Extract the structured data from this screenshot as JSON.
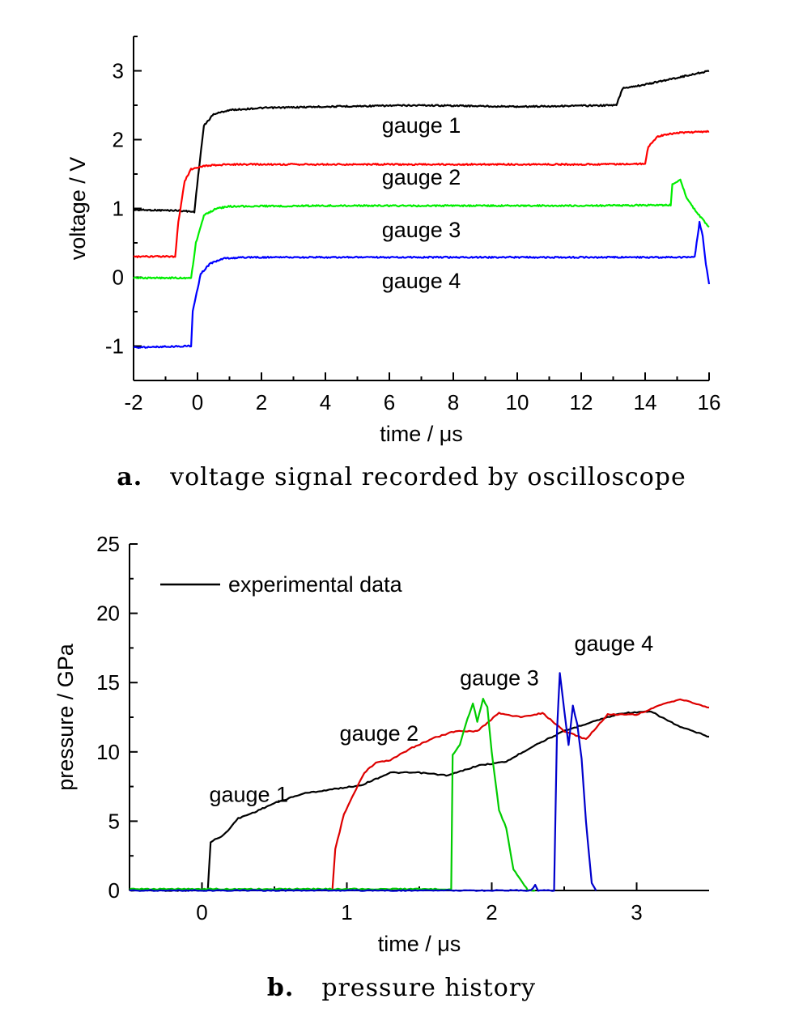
{
  "panel_a": {
    "caption_letter": "a.",
    "caption_text": "voltage signal recorded by oscilloscope"
  },
  "panel_b": {
    "caption_letter": "b.",
    "caption_text": "pressure history"
  },
  "chart_data": [
    {
      "type": "line",
      "title": "",
      "xlabel": "time / μs",
      "ylabel": "voltage / V",
      "xlim": [
        -2,
        16
      ],
      "ylim": [
        -1.5,
        3.5
      ],
      "xticks": [
        -2,
        0,
        2,
        4,
        6,
        8,
        10,
        12,
        14,
        16
      ],
      "xtick_labels": [
        "-2",
        "0",
        "2",
        "4",
        "6",
        "8",
        "10",
        "12",
        "14",
        "16"
      ],
      "yticks": [
        -1,
        0,
        1,
        2,
        3
      ],
      "ytick_labels": [
        "-1",
        "0",
        "1",
        "2",
        "3"
      ],
      "grid": false,
      "annotations": [
        {
          "text": "gauge 1",
          "x": 7.0,
          "y": 2.1
        },
        {
          "text": "gauge 2",
          "x": 7.0,
          "y": 1.35
        },
        {
          "text": "gauge 3",
          "x": 7.0,
          "y": 0.58
        },
        {
          "text": "gauge 4",
          "x": 7.0,
          "y": -0.16
        }
      ],
      "series": [
        {
          "color": "#000000",
          "x": [
            -2,
            -0.6,
            -0.1,
            0.05,
            0.2,
            0.5,
            1,
            2,
            4,
            7,
            10,
            13.1,
            13.3,
            14,
            15,
            16
          ],
          "y": [
            0.98,
            0.97,
            0.95,
            1.6,
            2.2,
            2.37,
            2.43,
            2.46,
            2.48,
            2.5,
            2.48,
            2.5,
            2.75,
            2.8,
            2.9,
            3.0
          ]
        },
        {
          "color": "#ff0000",
          "x": [
            -2,
            -0.7,
            -0.6,
            -0.4,
            -0.2,
            0.2,
            1,
            4,
            8,
            12,
            14.0,
            14.1,
            14.4,
            15,
            16
          ],
          "y": [
            0.3,
            0.3,
            0.8,
            1.4,
            1.57,
            1.62,
            1.64,
            1.64,
            1.64,
            1.64,
            1.65,
            1.9,
            2.05,
            2.1,
            2.12
          ]
        },
        {
          "color": "#00ee00",
          "x": [
            -2,
            -0.2,
            -0.05,
            0.2,
            0.6,
            1,
            4,
            8,
            12,
            14.8,
            14.85,
            15.1,
            15.3,
            15.6,
            16
          ],
          "y": [
            -0.01,
            -0.01,
            0.5,
            0.9,
            1.0,
            1.03,
            1.04,
            1.04,
            1.04,
            1.05,
            1.35,
            1.42,
            1.15,
            0.95,
            0.73
          ]
        },
        {
          "color": "#0000ff",
          "x": [
            -2,
            -0.2,
            -0.15,
            0.1,
            0.4,
            0.8,
            1.5,
            4,
            8,
            12,
            15.4,
            15.55,
            15.7,
            15.8,
            15.9,
            16
          ],
          "y": [
            -1.02,
            -1.0,
            -0.5,
            0.05,
            0.2,
            0.27,
            0.29,
            0.29,
            0.29,
            0.29,
            0.29,
            0.3,
            0.8,
            0.6,
            0.2,
            -0.1
          ]
        }
      ]
    },
    {
      "type": "line",
      "title": "",
      "xlabel": "time / μs",
      "ylabel": "pressure / GPa",
      "xlim": [
        -0.5,
        3.5
      ],
      "ylim": [
        0,
        25
      ],
      "xticks": [
        0,
        1,
        2,
        3
      ],
      "xtick_labels": [
        "0",
        "1",
        "2",
        "3"
      ],
      "yticks": [
        0,
        5,
        10,
        15,
        20,
        25
      ],
      "ytick_labels": [
        "0",
        "5",
        "10",
        "15",
        "20",
        "25"
      ],
      "grid": false,
      "legend": {
        "position": "top-left",
        "entries": [
          {
            "label": "experimental data",
            "color": "#000000"
          }
        ]
      },
      "annotations": [
        {
          "text": "gauge 1",
          "x": 0.05,
          "y": 6.4
        },
        {
          "text": "gauge 2",
          "x": 0.95,
          "y": 10.8
        },
        {
          "text": "gauge 3",
          "x": 1.78,
          "y": 14.8
        },
        {
          "text": "gauge 4",
          "x": 2.57,
          "y": 17.3
        }
      ],
      "series": [
        {
          "color": "#000000",
          "x": [
            -0.5,
            0.04,
            0.06,
            0.15,
            0.25,
            0.35,
            0.5,
            0.7,
            0.9,
            1.1,
            1.3,
            1.5,
            1.7,
            1.9,
            2.1,
            2.3,
            2.5,
            2.7,
            2.9,
            3.1,
            3.3,
            3.5
          ],
          "y": [
            0,
            0,
            3.5,
            4.0,
            5.2,
            5.6,
            6.3,
            7.0,
            7.3,
            7.6,
            8.5,
            8.5,
            8.3,
            9.0,
            9.3,
            10.5,
            11.5,
            12.2,
            12.8,
            12.9,
            11.8,
            11.1
          ]
        },
        {
          "color": "#dd0000",
          "x": [
            0.9,
            0.92,
            0.98,
            1.05,
            1.12,
            1.2,
            1.3,
            1.45,
            1.6,
            1.75,
            1.9,
            2.05,
            2.2,
            2.35,
            2.5,
            2.65,
            2.8,
            3.0,
            3.2,
            3.3,
            3.5
          ],
          "y": [
            0,
            3.0,
            5.5,
            7.0,
            8.5,
            9.2,
            9.4,
            10.3,
            11.0,
            11.5,
            11.5,
            12.8,
            12.5,
            12.8,
            11.5,
            10.9,
            12.7,
            12.7,
            13.5,
            13.8,
            13.2
          ]
        },
        {
          "color": "#00cc00",
          "x": [
            -0.5,
            1.72,
            1.73,
            1.78,
            1.82,
            1.87,
            1.9,
            1.94,
            1.97,
            2.0,
            2.05,
            2.1,
            2.15,
            2.2,
            2.25,
            2.3
          ],
          "y": [
            0.1,
            0.1,
            9.8,
            10.5,
            12.0,
            13.5,
            12.2,
            13.8,
            13.2,
            10.0,
            5.8,
            4.5,
            1.5,
            0.8,
            0,
            0
          ]
        },
        {
          "color": "#0000cc",
          "x": [
            -0.5,
            2.27,
            2.3,
            2.32,
            2.43,
            2.45,
            2.47,
            2.5,
            2.53,
            2.56,
            2.59,
            2.62,
            2.65,
            2.69,
            2.72
          ],
          "y": [
            0,
            0,
            0.4,
            0,
            0,
            11.5,
            15.7,
            13.0,
            10.5,
            13.3,
            12.0,
            9.5,
            5.0,
            0.5,
            0
          ]
        }
      ]
    }
  ]
}
